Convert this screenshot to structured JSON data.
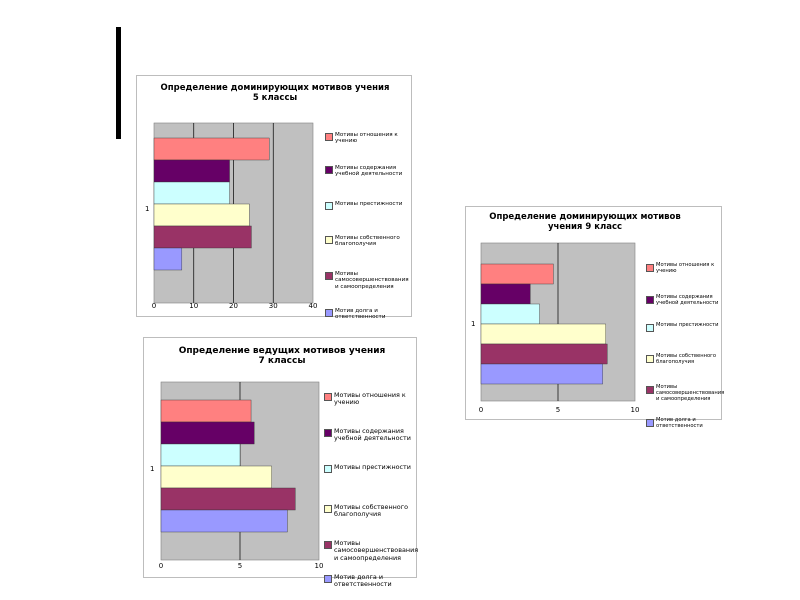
{
  "decor": {
    "dots": [
      {
        "name": "dark-teal-dot",
        "color": "#2f5f63"
      },
      {
        "name": "light-teal-dot",
        "color": "#9fcfd2"
      },
      {
        "name": "gray-dot",
        "color": "#cfcfcf"
      }
    ]
  },
  "colors": {
    "plot_bg": "#c0c0c0",
    "series": [
      "#ff8080",
      "#660066",
      "#ccffff",
      "#ffffcc",
      "#993366",
      "#9999ff"
    ]
  },
  "chart_data": [
    {
      "id": "grade5",
      "type": "bar",
      "orientation": "horizontal",
      "title": "Определение доминирующих мотивов учения\n5 классы",
      "categories": [
        "1"
      ],
      "xlim": [
        0,
        40
      ],
      "xticks": [
        0,
        10,
        20,
        30,
        40
      ],
      "grid": true,
      "legend_position": "right",
      "series": [
        {
          "name": "Мотивы отношения к учению",
          "values": [
            29
          ]
        },
        {
          "name": "Мотивы содержания учебной деятельности",
          "values": [
            19
          ]
        },
        {
          "name": "Мотивы престижности",
          "values": [
            19
          ]
        },
        {
          "name": "Мотивы собственного благополучия",
          "values": [
            24
          ]
        },
        {
          "name": "Мотивы самосовершенствования и самоопределения",
          "values": [
            24.5
          ]
        },
        {
          "name": "Мотив долга и ответственности",
          "values": [
            7
          ]
        }
      ]
    },
    {
      "id": "grade7",
      "type": "bar",
      "orientation": "horizontal",
      "title": "Определение ведущих мотивов учения\n7 классы",
      "categories": [
        "1"
      ],
      "xlim": [
        0,
        10
      ],
      "xticks": [
        0,
        5,
        10
      ],
      "grid": true,
      "legend_position": "right",
      "series": [
        {
          "name": "Мотивы отношения к учению",
          "values": [
            5.7
          ]
        },
        {
          "name": "Мотивы содержания учебной деятельности",
          "values": [
            5.9
          ]
        },
        {
          "name": "Мотивы престижности",
          "values": [
            5
          ]
        },
        {
          "name": "Мотивы собственного благополучия",
          "values": [
            7
          ]
        },
        {
          "name": "Мотивы самосовершенствования и самоопределения",
          "values": [
            8.5
          ]
        },
        {
          "name": "Мотив долга и ответственности",
          "values": [
            8
          ]
        }
      ]
    },
    {
      "id": "grade9",
      "type": "bar",
      "orientation": "horizontal",
      "title": "Определение доминирующих мотивов\nучения 9 класс",
      "categories": [
        "1"
      ],
      "xlim": [
        0,
        10
      ],
      "xticks": [
        0,
        5,
        10
      ],
      "grid": true,
      "legend_position": "right",
      "series": [
        {
          "name": "Мотивы отношения к учению",
          "values": [
            4.7
          ]
        },
        {
          "name": "Мотивы содержания учебной деятельности",
          "values": [
            3.2
          ]
        },
        {
          "name": "Мотивы престижности",
          "values": [
            3.8
          ]
        },
        {
          "name": "Мотивы собственного благополучия",
          "values": [
            8.1
          ]
        },
        {
          "name": "Мотивы самосовершенствования и самоопределения",
          "values": [
            8.2
          ]
        },
        {
          "name": "Мотив долга и ответственности",
          "values": [
            7.9
          ]
        }
      ]
    }
  ]
}
